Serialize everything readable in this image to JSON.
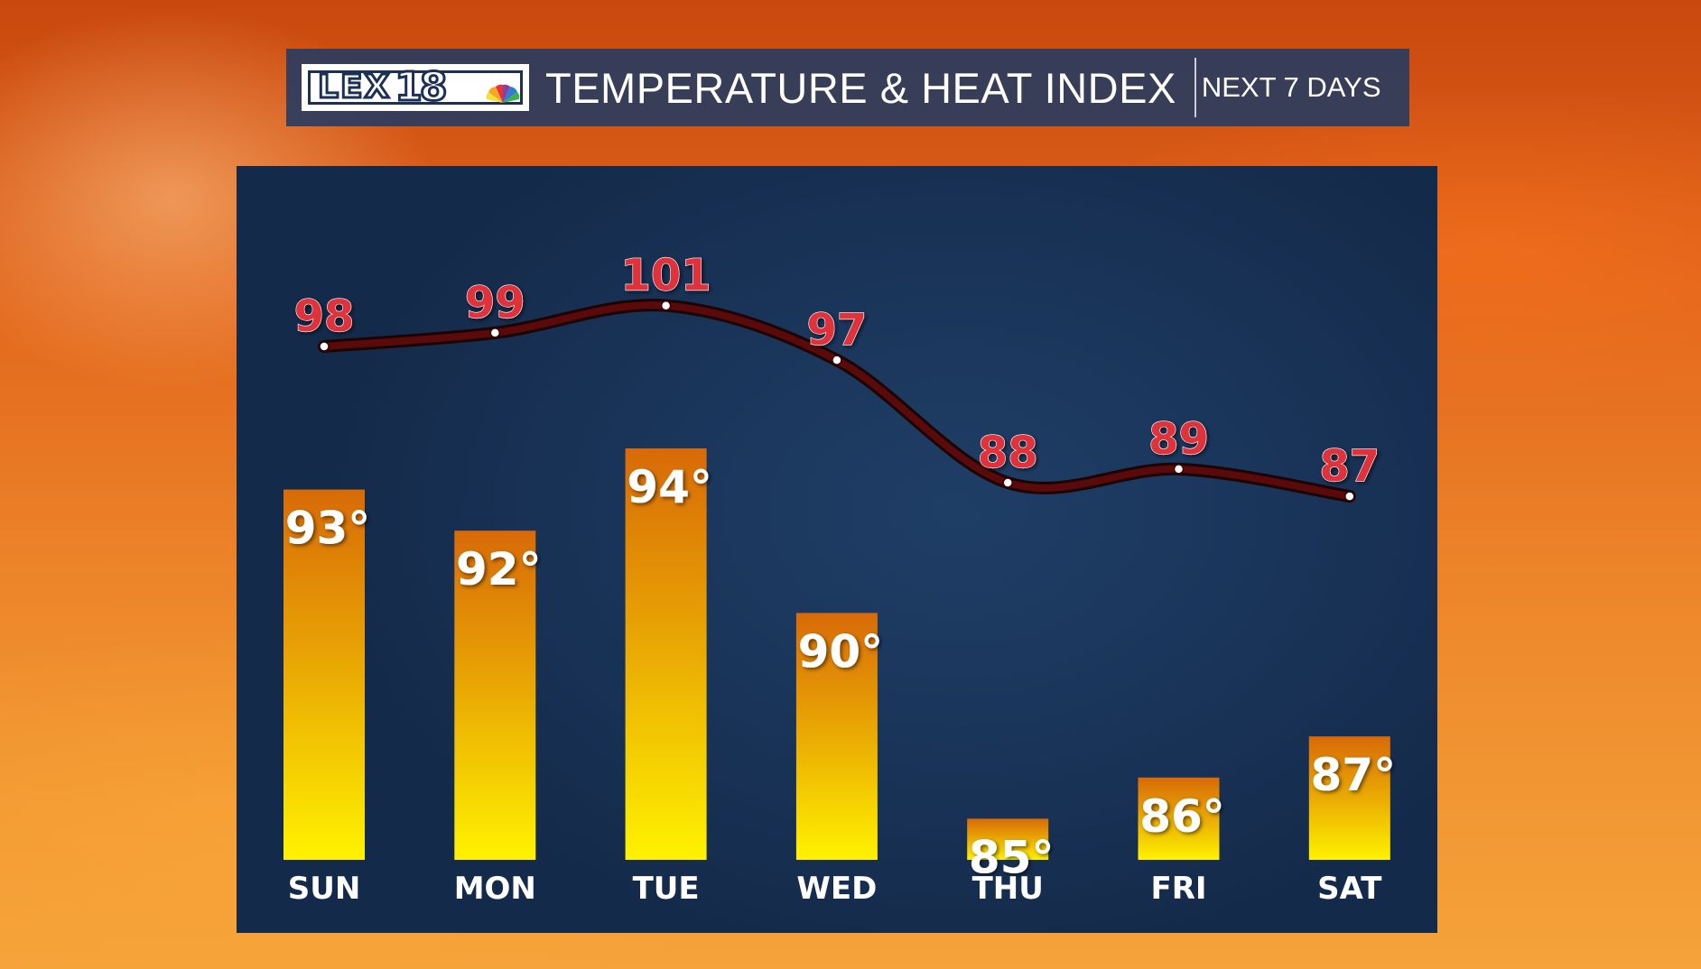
{
  "header": {
    "logo_text": "LEX18",
    "title": "TEMPERATURE & HEAT INDEX",
    "subtitle": "NEXT 7 DAYS"
  },
  "colors": {
    "header_bg": "#223a62",
    "panel_bg": "#1a355a",
    "bar_top": "#d86a08",
    "bar_bottom": "#fff200",
    "heat_line": "#5a0a0a",
    "heat_label": "#e0303a",
    "temp_label": "#ffffff"
  },
  "chart_data": {
    "type": "bar",
    "categories": [
      "SUN",
      "MON",
      "TUE",
      "WED",
      "THU",
      "FRI",
      "SAT"
    ],
    "series": [
      {
        "values": [
          93,
          92,
          94,
          90,
          85,
          86,
          87
        ],
        "label_suffix": "°"
      },
      {
        "type": "line",
        "values": [
          98,
          99,
          101,
          97,
          88,
          89,
          87
        ]
      }
    ],
    "title": "TEMPERATURE & HEAT INDEX",
    "subtitle": "NEXT 7 DAYS",
    "grid": false,
    "legend": false
  }
}
